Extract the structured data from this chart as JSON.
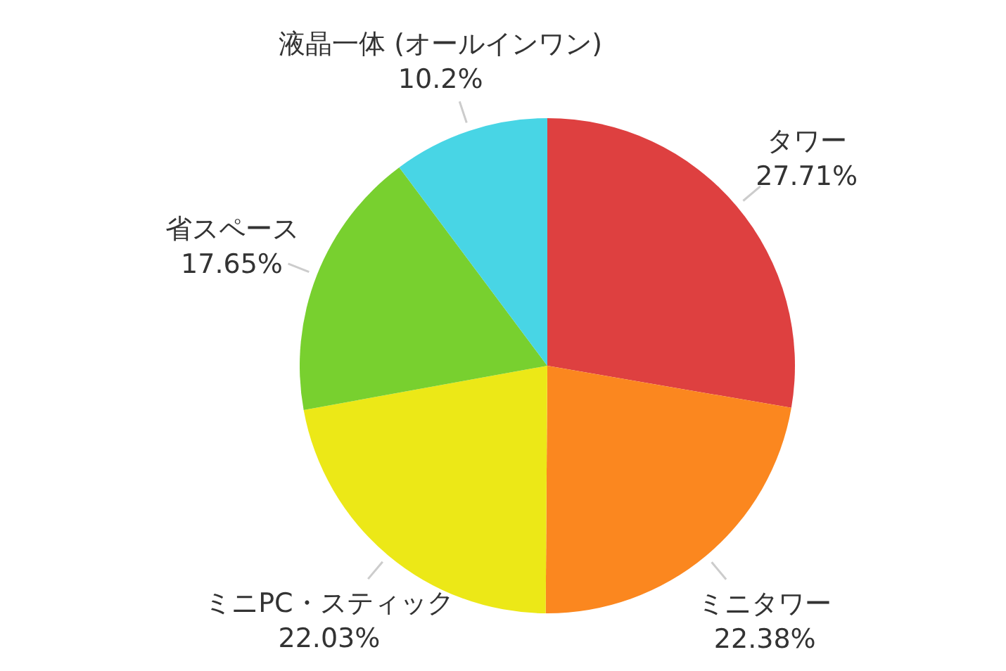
{
  "chart_data": {
    "type": "pie",
    "categories": [
      "タワー",
      "ミニタワー",
      "ミニPC・スティック",
      "省スペース",
      "液晶一体 (オールインワン)"
    ],
    "values": [
      27.71,
      22.38,
      22.03,
      17.65,
      10.2
    ],
    "value_labels": [
      "27.71%",
      "22.38%",
      "22.03%",
      "17.65%",
      "10.2%"
    ],
    "colors": [
      "#de4040",
      "#fb871f",
      "#ece817",
      "#78d02f",
      "#48d5e5"
    ],
    "legend": false
  }
}
